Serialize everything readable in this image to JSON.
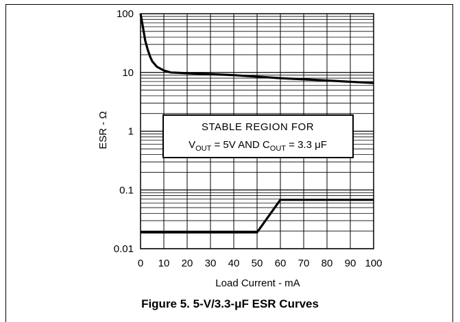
{
  "caption": "Figure 5. 5-V/3.3-μF ESR Curves",
  "chart_data": {
    "type": "line",
    "xlabel": "Load Current - mA",
    "ylabel": "ESR - Ω",
    "xlim": [
      0,
      100
    ],
    "ylim": [
      0.01,
      100
    ],
    "y_scale": "log",
    "grid": true,
    "x_ticks": [
      "0",
      "10",
      "20",
      "30",
      "40",
      "50",
      "60",
      "70",
      "80",
      "90",
      "100"
    ],
    "y_ticks": [
      "0.01",
      "0.1",
      "1",
      "10",
      "100"
    ],
    "annotation": {
      "line1": "STABLE REGION FOR",
      "v": "V",
      "v_sub": "OUT",
      "mid": " = 5V AND C",
      "c_sub": "OUT",
      "tail": " = 3.3 μF"
    },
    "series": [
      {
        "values": [
          [
            0,
            100
          ],
          [
            1,
            60
          ],
          [
            2,
            35
          ],
          [
            3,
            25
          ],
          [
            4,
            19
          ],
          [
            5,
            15.5
          ],
          [
            7,
            12.5
          ],
          [
            10,
            10.8
          ],
          [
            13,
            10
          ],
          [
            20,
            9.7
          ],
          [
            40,
            9
          ],
          [
            60,
            8
          ],
          [
            80,
            7.3
          ],
          [
            100,
            6.6
          ]
        ]
      },
      {
        "values": [
          [
            0,
            0.019
          ],
          [
            50,
            0.019
          ],
          [
            60,
            0.068
          ],
          [
            100,
            0.068
          ]
        ]
      }
    ]
  }
}
